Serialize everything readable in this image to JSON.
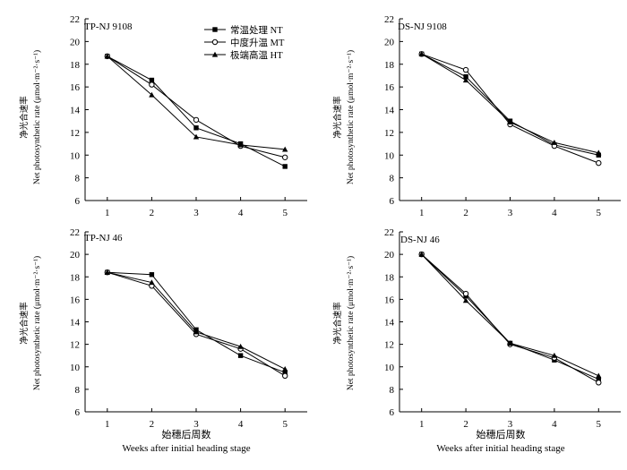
{
  "figure": {
    "xlabel_cn": "始穗后周数",
    "xlabel_en": "Weeks after initial heading stage",
    "ylabel_cn": "净光合速率",
    "ylabel_en": "Net photosynthetic rate (μmol·m⁻²·s⁻¹)"
  },
  "legend": [
    {
      "label": "常温处理 NT",
      "marker": "square"
    },
    {
      "label": "中度升温 MT",
      "marker": "circle"
    },
    {
      "label": "极端高温 HT",
      "marker": "triangle"
    }
  ],
  "chart_data": [
    {
      "type": "line",
      "title": "TP-NJ 9108",
      "x": [
        1,
        2,
        3,
        4,
        5
      ],
      "xlim": [
        0.5,
        5.5
      ],
      "ylim": [
        6,
        22
      ],
      "yticks": [
        6,
        8,
        10,
        12,
        14,
        16,
        18,
        20,
        22
      ],
      "series": [
        {
          "name": "常温处理 NT",
          "values": [
            18.7,
            16.6,
            12.4,
            11.0,
            9.0
          ]
        },
        {
          "name": "中度升温 MT",
          "values": [
            18.7,
            16.2,
            13.1,
            10.8,
            9.8
          ]
        },
        {
          "name": "极端高温 HT",
          "values": [
            18.7,
            15.3,
            11.6,
            10.9,
            10.5
          ]
        }
      ]
    },
    {
      "type": "line",
      "title": "DS-NJ 9108",
      "x": [
        1,
        2,
        3,
        4,
        5
      ],
      "xlim": [
        0.5,
        5.5
      ],
      "ylim": [
        6,
        22
      ],
      "yticks": [
        6,
        8,
        10,
        12,
        14,
        16,
        18,
        20,
        22
      ],
      "series": [
        {
          "name": "常温处理 NT",
          "values": [
            18.9,
            16.9,
            13.0,
            10.9,
            10.0
          ]
        },
        {
          "name": "中度升温 MT",
          "values": [
            18.9,
            17.5,
            12.7,
            10.8,
            9.3
          ]
        },
        {
          "name": "极端高温 HT",
          "values": [
            18.9,
            16.6,
            12.9,
            11.1,
            10.2
          ]
        }
      ]
    },
    {
      "type": "line",
      "title": "TP-NJ 46",
      "x": [
        1,
        2,
        3,
        4,
        5
      ],
      "xlim": [
        0.5,
        5.5
      ],
      "ylim": [
        6,
        22
      ],
      "yticks": [
        6,
        8,
        10,
        12,
        14,
        16,
        18,
        20,
        22
      ],
      "series": [
        {
          "name": "常温处理 NT",
          "values": [
            18.4,
            18.2,
            13.3,
            11.0,
            9.5
          ]
        },
        {
          "name": "中度升温 MT",
          "values": [
            18.4,
            17.2,
            12.9,
            11.6,
            9.2
          ]
        },
        {
          "name": "极端高温 HT",
          "values": [
            18.4,
            17.5,
            13.1,
            11.8,
            9.8
          ]
        }
      ]
    },
    {
      "type": "line",
      "title": "DS-NJ 46",
      "x": [
        1,
        2,
        3,
        4,
        5
      ],
      "xlim": [
        0.5,
        5.5
      ],
      "ylim": [
        6,
        22
      ],
      "yticks": [
        6,
        8,
        10,
        12,
        14,
        16,
        18,
        20,
        22
      ],
      "series": [
        {
          "name": "常温处理 NT",
          "values": [
            20.0,
            16.3,
            12.1,
            10.6,
            8.9
          ]
        },
        {
          "name": "中度升温 MT",
          "values": [
            20.0,
            16.5,
            12.0,
            10.8,
            8.6
          ]
        },
        {
          "name": "极端高温 HT",
          "values": [
            20.0,
            15.9,
            12.1,
            11.0,
            9.2
          ]
        }
      ]
    }
  ]
}
